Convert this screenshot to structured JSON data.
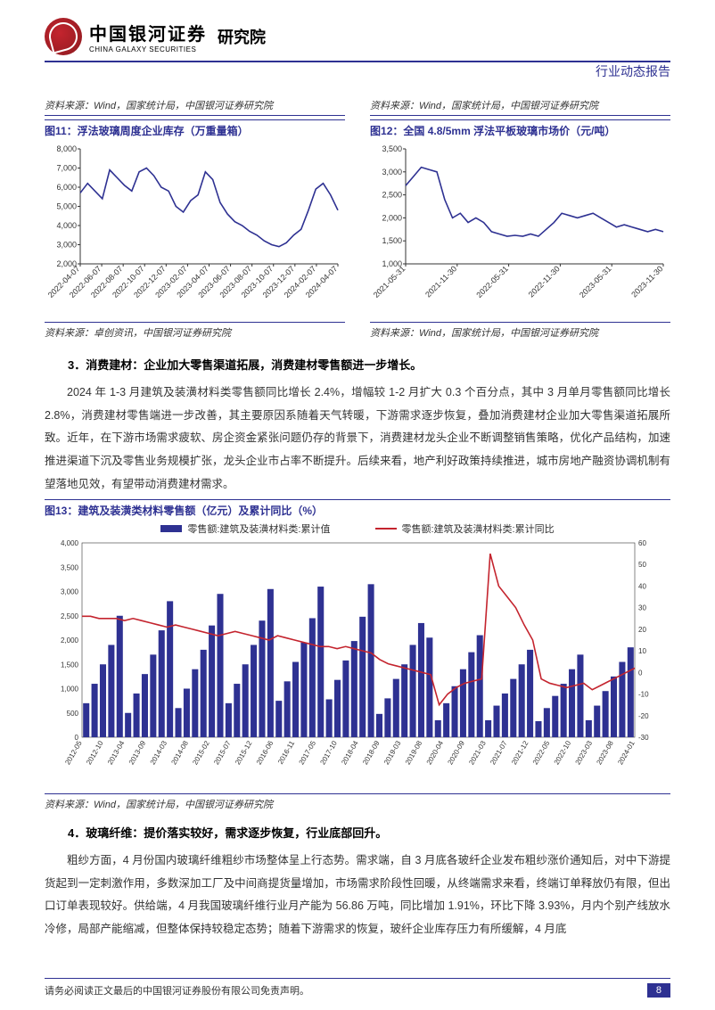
{
  "header": {
    "brand_cn": "中国银河证券",
    "brand_en": "CHINA GALAXY SECURITIES",
    "institute": "研究院",
    "doc_type": "行业动态报告"
  },
  "source_top_left": "资料来源：Wind，国家统计局，中国银河证券研究院",
  "source_top_right": "资料来源：Wind，国家统计局，中国银河证券研究院",
  "fig11": {
    "title": "图11：浮法玻璃周度企业库存（万重量箱）",
    "source": "资料来源：卓创资讯，中国银河证券研究院",
    "ymin": 2000,
    "ymax": 8000,
    "ystep": 1000,
    "xlabels": [
      "2022-04-07",
      "2022-06-07",
      "2022-08-07",
      "2022-10-07",
      "2022-12-07",
      "2023-02-07",
      "2023-04-07",
      "2023-06-07",
      "2023-08-07",
      "2023-10-07",
      "2023-12-07",
      "2024-02-07",
      "2024-04-07"
    ],
    "series": [
      5700,
      6200,
      5800,
      5400,
      6900,
      6500,
      6100,
      5800,
      6800,
      7000,
      6600,
      6000,
      5800,
      5000,
      4700,
      5300,
      5600,
      6800,
      6400,
      5200,
      4600,
      4200,
      4000,
      3700,
      3500,
      3200,
      3000,
      2900,
      3100,
      3500,
      3800,
      4800,
      5900,
      6200,
      5600,
      4800
    ],
    "line_color": "#2e3192",
    "axis_color": "#333",
    "tick_fontsize": 9
  },
  "fig12": {
    "title": "图12：全国 4.8/5mm 浮法平板玻璃市场价（元/吨）",
    "source": "资料来源：Wind，国家统计局，中国银河证券研究院",
    "ymin": 1000,
    "ymax": 3500,
    "ystep": 500,
    "xlabels": [
      "2021-05-31",
      "2021-11-30",
      "2022-05-31",
      "2022-11-30",
      "2023-05-31",
      "2023-11-30"
    ],
    "series": [
      2700,
      2900,
      3100,
      3050,
      3000,
      2400,
      2000,
      2100,
      1900,
      2000,
      1900,
      1700,
      1650,
      1600,
      1620,
      1600,
      1650,
      1600,
      1750,
      1900,
      2100,
      2050,
      2000,
      2050,
      2100,
      2000,
      1900,
      1800,
      1850,
      1800,
      1750,
      1700,
      1750,
      1700
    ],
    "line_color": "#2e3192",
    "axis_color": "#333",
    "tick_fontsize": 9
  },
  "section3": {
    "heading": "3．消费建材：企业加大零售渠道拓展，消费建材零售额进一步增长。",
    "paragraph": "2024 年 1-3 月建筑及装潢材料类零售额同比增长 2.4%，增幅较 1-2 月扩大 0.3 个百分点，其中 3 月单月零售额同比增长 2.8%，消费建材零售端进一步改善，其主要原因系随着天气转暖，下游需求逐步恢复，叠加消费建材企业加大零售渠道拓展所致。近年，在下游市场需求疲软、房企资金紧张问题仍存的背景下，消费建材龙头企业不断调整销售策略，优化产品结构，加速推进渠道下沉及零售业务规模扩张，龙头企业市占率不断提升。后续来看，地产利好政策持续推进，城市房地产融资协调机制有望落地见效，有望带动消费建材需求。"
  },
  "fig13": {
    "title": "图13：建筑及装潢类材料零售额（亿元）及累计同比（%）",
    "source": "资料来源：Wind，国家统计局，中国银河证券研究院",
    "legend_bar": "零售额:建筑及装潢材料类:累计值",
    "legend_line": "零售额:建筑及装潢材料类:累计同比",
    "y1min": 0,
    "y1max": 4000,
    "y1step": 500,
    "y2min": -30,
    "y2max": 60,
    "y2step": 10,
    "xlabels": [
      "2012-05",
      "2012-10",
      "2013-04",
      "2013-09",
      "2014-03",
      "2014-08",
      "2015-02",
      "2015-07",
      "2015-12",
      "2016-06",
      "2016-11",
      "2017-05",
      "2017-10",
      "2018-04",
      "2018-09",
      "2019-03",
      "2019-08",
      "2020-04",
      "2020-09",
      "2021-03",
      "2021-07",
      "2021-12",
      "2022-05",
      "2022-10",
      "2023-03",
      "2023-08",
      "2024-01"
    ],
    "bars": [
      700,
      1100,
      1500,
      1900,
      2500,
      500,
      900,
      1300,
      1700,
      2200,
      2800,
      600,
      1000,
      1400,
      1800,
      2300,
      2950,
      700,
      1100,
      1500,
      1900,
      2400,
      3050,
      750,
      1150,
      1550,
      1950,
      2450,
      3100,
      780,
      1180,
      1580,
      1980,
      2480,
      3150,
      480,
      800,
      1200,
      1500,
      1900,
      2350,
      2050,
      350,
      700,
      1050,
      1400,
      1750,
      2100,
      350,
      650,
      900,
      1200,
      1500,
      1800,
      330,
      600,
      850,
      1100,
      1400,
      1700,
      350,
      650,
      950,
      1250,
      1550,
      1850
    ],
    "line_pct": [
      26,
      26,
      25,
      25,
      25,
      24,
      25,
      24,
      23,
      22,
      21,
      22,
      21,
      20,
      19,
      18,
      17,
      18,
      19,
      18,
      17,
      16,
      15,
      17,
      16,
      15,
      14,
      13,
      12,
      12,
      11,
      12,
      11,
      10,
      9,
      6,
      4,
      3,
      2,
      1,
      0,
      -1,
      -15,
      -10,
      -7,
      -5,
      -4,
      -3,
      55,
      40,
      35,
      30,
      22,
      15,
      -3,
      -5,
      -6,
      -7,
      -6,
      -5,
      -8,
      -6,
      -4,
      -2,
      0,
      2
    ],
    "bar_color": "#2e3192",
    "line_color": "#c4242e",
    "axis_color": "#333",
    "tick_fontsize": 8
  },
  "section4": {
    "heading": "4．玻璃纤维：提价落实较好，需求逐步恢复，行业底部回升。",
    "paragraph": "粗纱方面，4 月份国内玻璃纤维粗纱市场整体呈上行态势。需求端，自 3 月底各玻纤企业发布粗纱涨价通知后，对中下游提货起到一定刺激作用，多数深加工厂及中间商提货量增加，市场需求阶段性回暖，从终端需求来看，终端订单释放仍有限，但出口订单表现较好。供给端，4 月我国玻璃纤维行业月产能为 56.86 万吨，同比增加 1.91%，环比下降 3.93%，月内个别产线放水冷修，局部产能缩减，但整体保持较稳定态势；随着下游需求的恢复，玻纤企业库存压力有所缓解，4 月底"
  },
  "footer": {
    "disclaimer": "请务必阅读正文最后的中国银河证券股份有限公司免责声明。",
    "page": "8"
  }
}
